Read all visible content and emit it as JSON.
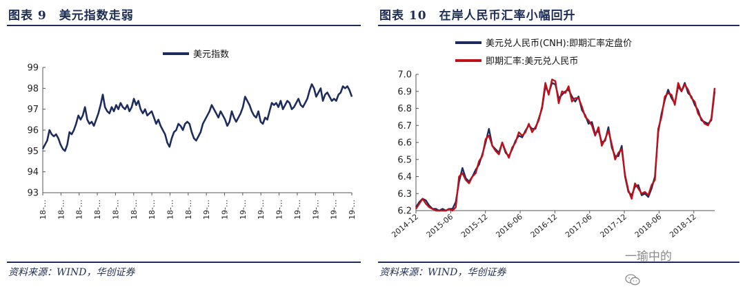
{
  "left": {
    "title": "图表 9　美元指数走弱",
    "source": "资料来源：WIND，华创证券"
  },
  "right": {
    "title": "图表 10　在岸人民币汇率小幅回升",
    "source": "资料来源：WIND，华创证券"
  },
  "watermark": "一瑜中的",
  "chart_data": [
    {
      "type": "line",
      "title": "美元指数走弱",
      "legend_position": "top-center",
      "ylim": [
        93,
        99
      ],
      "yticks": [
        93,
        94,
        95,
        96,
        97,
        98,
        99
      ],
      "x_tick_labels": [
        "18-…",
        "18-…",
        "18-…",
        "18-…",
        "18-…",
        "18-…",
        "18-…",
        "18-…",
        "18-…",
        "19-…",
        "19-…",
        "19-…",
        "19-…",
        "19-…",
        "19-…",
        "19-…",
        "19-…",
        "19-…"
      ],
      "color": "#1c2c5c",
      "series": [
        {
          "name": "美元指数",
          "values": [
            95.1,
            95.3,
            95.5,
            96.0,
            95.8,
            95.7,
            95.8,
            95.6,
            95.3,
            95.1,
            95.0,
            95.3,
            95.9,
            95.8,
            96.0,
            96.3,
            96.7,
            96.5,
            96.7,
            97.1,
            96.5,
            96.3,
            96.4,
            96.2,
            96.5,
            96.8,
            97.2,
            97.7,
            97.1,
            96.9,
            96.8,
            97.1,
            96.9,
            97.2,
            97.0,
            97.3,
            97.1,
            97.0,
            97.2,
            96.9,
            97.1,
            97.5,
            97.2,
            97.4,
            97.0,
            96.8,
            97.0,
            96.7,
            96.8,
            96.9,
            96.6,
            96.3,
            96.5,
            96.2,
            96.0,
            95.8,
            95.4,
            95.2,
            95.6,
            95.9,
            96.0,
            96.3,
            96.2,
            96.0,
            96.3,
            96.4,
            96.3,
            95.9,
            95.6,
            95.5,
            95.7,
            95.9,
            96.3,
            96.5,
            96.7,
            96.9,
            97.2,
            97.0,
            96.8,
            96.6,
            96.9,
            96.7,
            96.5,
            96.2,
            96.4,
            96.9,
            96.6,
            96.4,
            96.6,
            96.8,
            97.1,
            97.6,
            97.4,
            97.2,
            96.9,
            96.7,
            96.6,
            96.9,
            96.4,
            96.3,
            96.6,
            96.5,
            96.9,
            97.3,
            97.2,
            97.3,
            97.1,
            97.4,
            97.0,
            97.2,
            97.4,
            97.3,
            97.0,
            97.1,
            97.3,
            97.5,
            97.2,
            97.1,
            97.3,
            97.5,
            97.9,
            98.2,
            98.0,
            97.6,
            97.8,
            98.0,
            97.4,
            97.7,
            97.8,
            97.6,
            97.4,
            97.5,
            97.4,
            97.7,
            97.8,
            98.1,
            98.0,
            98.1,
            97.9,
            97.6
          ]
        }
      ]
    },
    {
      "type": "line",
      "title": "在岸人民币汇率小幅回升",
      "legend_position": "top-left",
      "ylim": [
        6.2,
        7.0
      ],
      "yticks": [
        6.2,
        6.3,
        6.4,
        6.5,
        6.6,
        6.7,
        6.8,
        6.9,
        7.0
      ],
      "x_tick_labels": [
        "2014-12",
        "2015-06",
        "2015-12",
        "2016-06",
        "2016-12",
        "2017-06",
        "2017-12",
        "2018-06",
        "2018-12"
      ],
      "series": [
        {
          "name": "美元兑人民币(CNH):即期汇率定盘价",
          "color": "#1c2c5c",
          "values": [
            6.22,
            6.25,
            6.27,
            6.26,
            6.23,
            6.21,
            6.21,
            6.2,
            6.21,
            6.2,
            6.21,
            6.21,
            6.25,
            6.37,
            6.45,
            6.39,
            6.37,
            6.4,
            6.44,
            6.47,
            6.53,
            6.6,
            6.68,
            6.58,
            6.56,
            6.54,
            6.6,
            6.54,
            6.52,
            6.56,
            6.61,
            6.64,
            6.63,
            6.67,
            6.7,
            6.68,
            6.68,
            6.74,
            6.8,
            6.93,
            6.89,
            6.95,
            6.94,
            6.86,
            6.88,
            6.9,
            6.91,
            6.87,
            6.84,
            6.87,
            6.79,
            6.76,
            6.71,
            6.72,
            6.65,
            6.67,
            6.6,
            6.61,
            6.69,
            6.57,
            6.52,
            6.52,
            6.58,
            6.4,
            6.31,
            6.29,
            6.34,
            6.35,
            6.29,
            6.3,
            6.28,
            6.33,
            6.4,
            6.66,
            6.77,
            6.85,
            6.91,
            6.86,
            6.83,
            6.93,
            6.9,
            6.95,
            6.89,
            6.87,
            6.82,
            6.79,
            6.73,
            6.72,
            6.71,
            6.73,
            6.9
          ]
        },
        {
          "name": "即期汇率:美元兑人民币",
          "color": "#c0101a",
          "values": [
            6.21,
            6.24,
            6.27,
            6.24,
            6.22,
            6.21,
            6.2,
            6.2,
            6.2,
            6.2,
            6.21,
            6.2,
            6.22,
            6.4,
            6.42,
            6.38,
            6.36,
            6.4,
            6.42,
            6.49,
            6.52,
            6.62,
            6.64,
            6.58,
            6.55,
            6.53,
            6.6,
            6.55,
            6.51,
            6.57,
            6.6,
            6.66,
            6.64,
            6.66,
            6.71,
            6.66,
            6.69,
            6.73,
            6.81,
            6.95,
            6.88,
            6.97,
            6.96,
            6.83,
            6.9,
            6.89,
            6.93,
            6.84,
            6.86,
            6.86,
            6.81,
            6.75,
            6.73,
            6.7,
            6.64,
            6.69,
            6.58,
            6.62,
            6.67,
            6.59,
            6.5,
            6.54,
            6.56,
            6.41,
            6.32,
            6.27,
            6.36,
            6.33,
            6.3,
            6.31,
            6.29,
            6.35,
            6.38,
            6.68,
            6.75,
            6.87,
            6.89,
            6.88,
            6.82,
            6.95,
            6.9,
            6.94,
            6.91,
            6.86,
            6.84,
            6.77,
            6.74,
            6.71,
            6.7,
            6.74,
            6.92
          ]
        }
      ]
    }
  ]
}
